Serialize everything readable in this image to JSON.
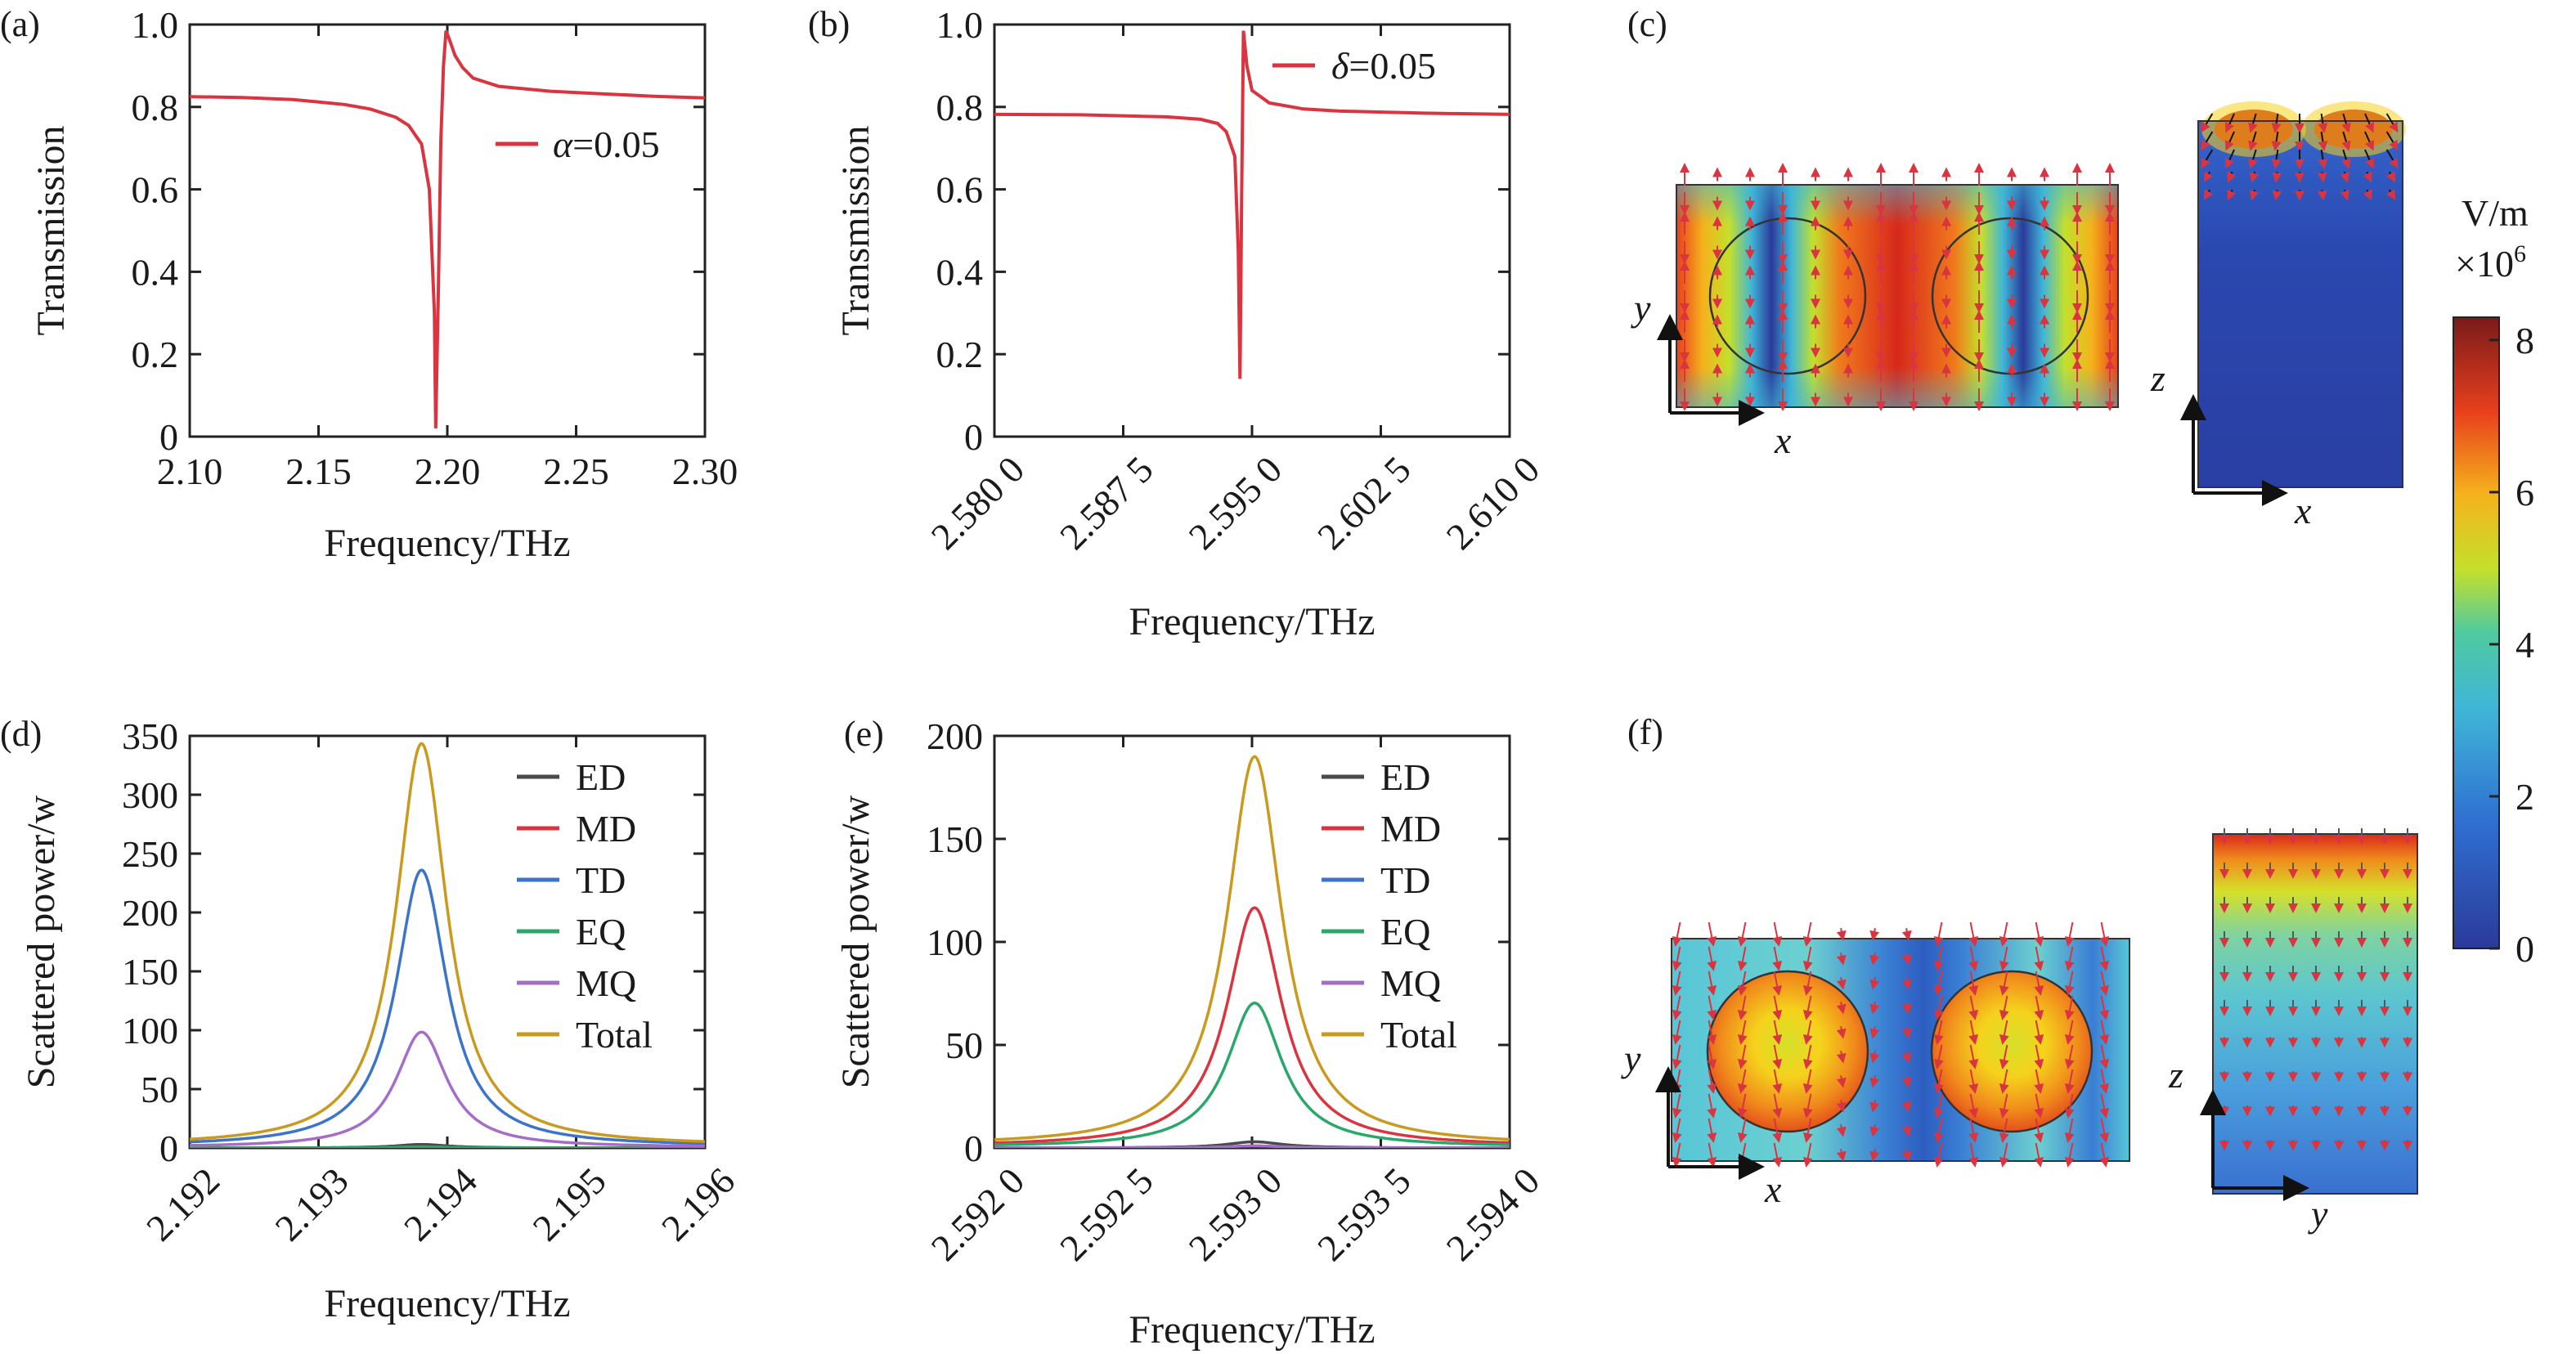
{
  "colors": {
    "ED": "#4a4a4a",
    "MD": "#d9343f",
    "TD": "#3c74c8",
    "EQ": "#2aa86a",
    "MQ": "#a66dc8",
    "Total": "#c99a1f",
    "red": "#d9343f"
  },
  "panels": {
    "a": "(a)",
    "b": "(b)",
    "c": "(c)",
    "d": "(d)",
    "e": "(e)",
    "f": "(f)"
  },
  "chart_data": [
    {
      "id": "a",
      "type": "line",
      "xlabel": "Frequency/THz",
      "ylabel": "Transmission",
      "xlim": [
        2.1,
        2.3
      ],
      "ylim": [
        0,
        1.0
      ],
      "xticks": [
        "2.10",
        "2.15",
        "2.20",
        "2.25",
        "2.30"
      ],
      "yticks": [
        "0",
        "0.2",
        "0.4",
        "0.6",
        "0.8",
        "1.0"
      ],
      "annotation": {
        "symbol": "α",
        "text": "=0.05"
      },
      "series": [
        {
          "x": [
            2.1,
            2.12,
            2.14,
            2.16,
            2.17,
            2.18,
            2.185,
            2.19,
            2.193,
            2.195,
            2.1955,
            2.1965,
            2.1975,
            2.1985,
            2.1995,
            2.201,
            2.203,
            2.206,
            2.21,
            2.22,
            2.24,
            2.26,
            2.28,
            2.3
          ],
          "y": [
            0.825,
            0.823,
            0.818,
            0.806,
            0.795,
            0.775,
            0.755,
            0.71,
            0.6,
            0.3,
            0.02,
            0.35,
            0.72,
            0.9,
            0.985,
            0.96,
            0.925,
            0.895,
            0.87,
            0.85,
            0.838,
            0.832,
            0.826,
            0.822
          ]
        }
      ]
    },
    {
      "id": "b",
      "type": "line",
      "xlabel": "Frequency/THz",
      "ylabel": "Transmission",
      "xlim": [
        2.58,
        2.61
      ],
      "ylim": [
        0,
        1.0
      ],
      "xticks": [
        "2.580 0",
        "2.587 5",
        "2.595 0",
        "2.602 5",
        "2.610 0"
      ],
      "xtick_values": [
        2.58,
        2.5875,
        2.595,
        2.6025,
        2.61
      ],
      "yticks": [
        "0",
        "0.2",
        "0.4",
        "0.6",
        "0.8",
        "1.0"
      ],
      "legend": [
        {
          "symbol": "δ",
          "text": "=0.05"
        }
      ],
      "series": [
        {
          "x": [
            2.58,
            2.585,
            2.59,
            2.592,
            2.593,
            2.5935,
            2.594,
            2.5942,
            2.5943,
            2.5944,
            2.5945,
            2.5947,
            2.595,
            2.596,
            2.598,
            2.6,
            2.605,
            2.61
          ],
          "y": [
            0.782,
            0.781,
            0.776,
            0.77,
            0.76,
            0.74,
            0.68,
            0.45,
            0.14,
            0.6,
            0.985,
            0.9,
            0.84,
            0.81,
            0.795,
            0.79,
            0.785,
            0.782
          ]
        }
      ]
    },
    {
      "id": "d",
      "type": "line",
      "xlabel": "Frequency/THz",
      "ylabel": "Scattered power/w",
      "xlim": [
        2.192,
        2.196
      ],
      "ylim": [
        0,
        350
      ],
      "xticks": [
        "2.192",
        "2.193",
        "2.194",
        "2.195",
        "2.196"
      ],
      "xtick_values": [
        2.192,
        2.193,
        2.194,
        2.195,
        2.196
      ],
      "yticks": [
        "0",
        "50",
        "100",
        "150",
        "200",
        "250",
        "300",
        "350"
      ],
      "ytick_values": [
        0,
        50,
        100,
        150,
        200,
        250,
        300,
        350
      ],
      "peak": 2.1938,
      "gamma": 0.00024,
      "offset": 1.5,
      "series": [
        {
          "name": "ED",
          "peak_value": 3
        },
        {
          "name": "MD",
          "peak_value": 1
        },
        {
          "name": "TD",
          "peak_value": 235
        },
        {
          "name": "EQ",
          "peak_value": 1
        },
        {
          "name": "MQ",
          "peak_value": 98
        },
        {
          "name": "Total",
          "peak_value": 342
        }
      ]
    },
    {
      "id": "e",
      "type": "line",
      "xlabel": "Frequency/THz",
      "ylabel": "Scattered power/w",
      "xlim": [
        2.592,
        2.594
      ],
      "ylim": [
        0,
        200
      ],
      "xticks": [
        "2.592 0",
        "2.592 5",
        "2.593 0",
        "2.593 5",
        "2.594 0"
      ],
      "xtick_values": [
        2.592,
        2.5925,
        2.593,
        2.5935,
        2.594
      ],
      "yticks": [
        "0",
        "50",
        "100",
        "150",
        "200"
      ],
      "ytick_values": [
        0,
        50,
        100,
        150,
        200
      ],
      "peak": 2.59301,
      "gamma": 0.00013,
      "offset": 1.0,
      "series": [
        {
          "name": "ED",
          "peak_value": 3
        },
        {
          "name": "MD",
          "peak_value": 116
        },
        {
          "name": "TD",
          "peak_value": 1
        },
        {
          "name": "EQ",
          "peak_value": 70
        },
        {
          "name": "MQ",
          "peak_value": 1
        },
        {
          "name": "Total",
          "peak_value": 189
        }
      ]
    }
  ],
  "field_maps": {
    "c_left": {
      "ylabel": "y",
      "xlabel": "x"
    },
    "c_right": {
      "ylabel": "z",
      "xlabel": "x"
    },
    "f_left": {
      "ylabel": "y",
      "xlabel": "x"
    },
    "f_right": {
      "ylabel": "z",
      "xlabel": "y"
    }
  },
  "colorbar": {
    "unit": "V/m",
    "scale_base": "×10",
    "scale_exp": "6",
    "ticks": [
      "0",
      "2",
      "4",
      "6",
      "8"
    ],
    "tick_values": [
      0,
      2,
      4,
      6,
      8
    ],
    "min": 0,
    "max": 8.3
  }
}
